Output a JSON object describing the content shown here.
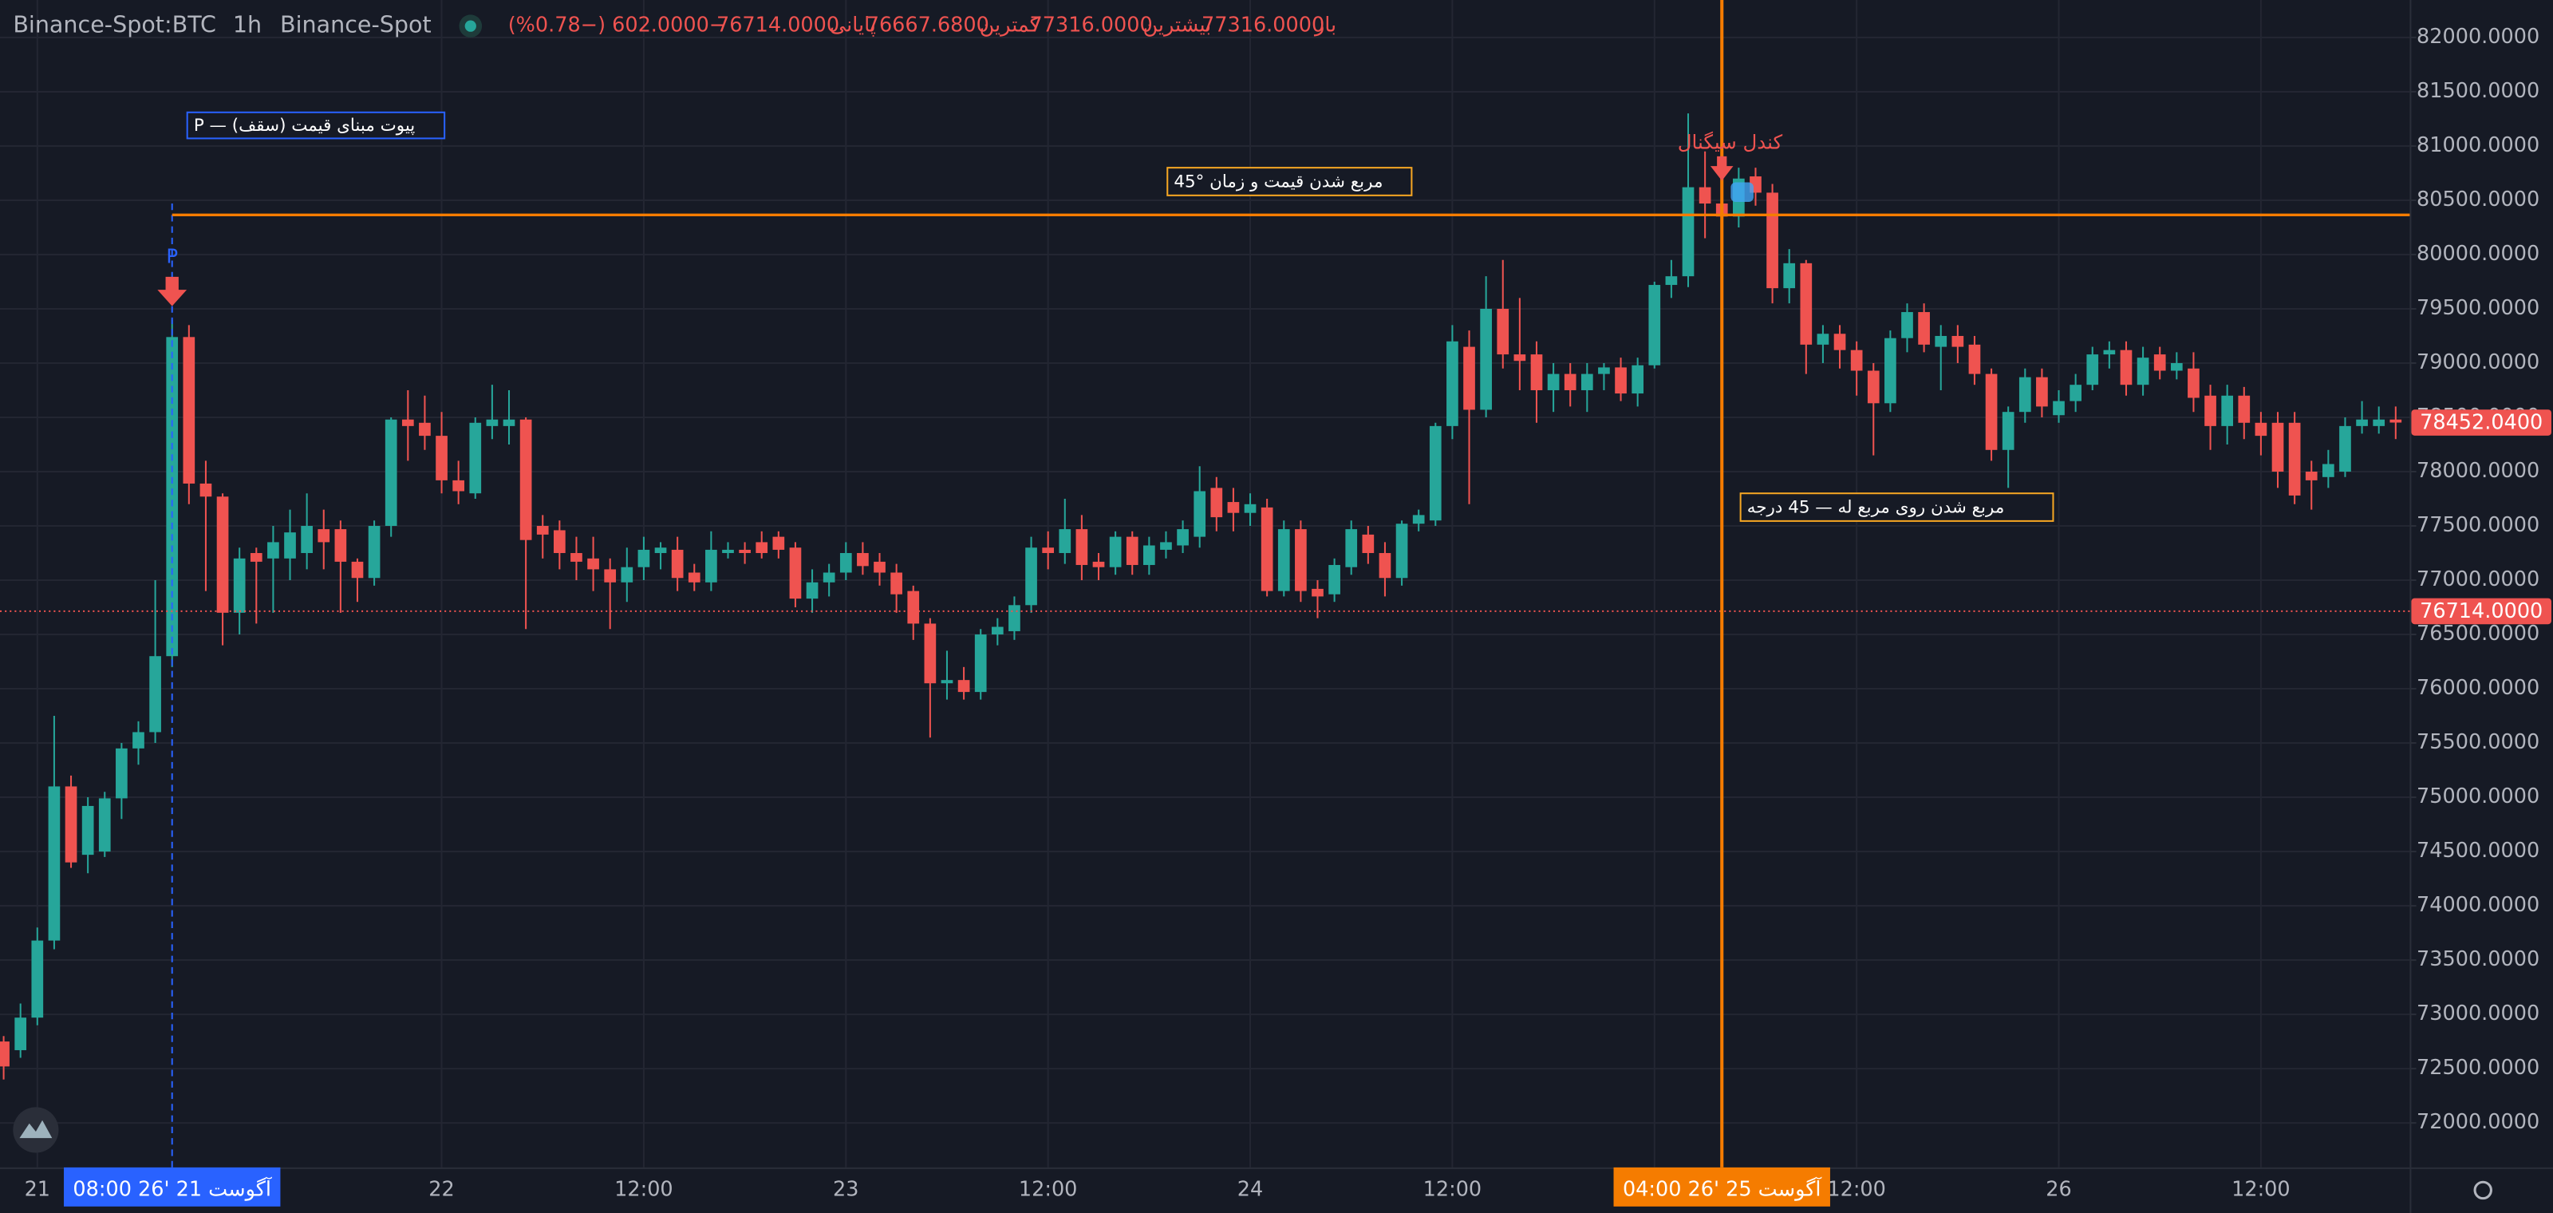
{
  "header": {
    "symbol": "Binance-Spot:BTC",
    "interval": "1h",
    "exchange": "Binance-Spot",
    "quote": [
      "باز",
      "77316.0000",
      "بیشترین",
      "77316.0000",
      "کمترین",
      "76667.6800",
      "پایانی",
      "76714.0000",
      "−602.0000 (−0.78%)"
    ]
  },
  "chart_data": {
    "type": "candlestick",
    "x": [
      "2026-08-20 22:00",
      "2026-08-20 23:00",
      "2026-08-21 00:00",
      "2026-08-21 01:00",
      "2026-08-21 02:00",
      "2026-08-21 03:00",
      "2026-08-21 04:00",
      "2026-08-21 05:00",
      "2026-08-21 06:00",
      "2026-08-21 07:00",
      "2026-08-21 08:00",
      "2026-08-21 09:00",
      "2026-08-21 10:00",
      "2026-08-21 11:00",
      "2026-08-21 12:00",
      "2026-08-21 13:00",
      "2026-08-21 14:00",
      "2026-08-21 15:00",
      "2026-08-21 16:00",
      "2026-08-21 17:00",
      "2026-08-21 18:00",
      "2026-08-21 19:00",
      "2026-08-21 20:00",
      "2026-08-21 21:00",
      "2026-08-21 22:00",
      "2026-08-21 23:00",
      "2026-08-22 00:00",
      "2026-08-22 01:00",
      "2026-08-22 02:00",
      "2026-08-22 03:00",
      "2026-08-22 04:00",
      "2026-08-22 05:00",
      "2026-08-22 06:00",
      "2026-08-22 07:00",
      "2026-08-22 08:00",
      "2026-08-22 09:00",
      "2026-08-22 10:00",
      "2026-08-22 11:00",
      "2026-08-22 12:00",
      "2026-08-22 13:00",
      "2026-08-22 14:00",
      "2026-08-22 15:00",
      "2026-08-22 16:00",
      "2026-08-22 17:00",
      "2026-08-22 18:00",
      "2026-08-22 19:00",
      "2026-08-22 20:00",
      "2026-08-22 21:00",
      "2026-08-22 22:00",
      "2026-08-22 23:00",
      "2026-08-23 00:00",
      "2026-08-23 01:00",
      "2026-08-23 02:00",
      "2026-08-23 03:00",
      "2026-08-23 04:00",
      "2026-08-23 05:00",
      "2026-08-23 06:00",
      "2026-08-23 07:00",
      "2026-08-23 08:00",
      "2026-08-23 09:00",
      "2026-08-23 10:00",
      "2026-08-23 11:00",
      "2026-08-23 12:00",
      "2026-08-23 13:00",
      "2026-08-23 14:00",
      "2026-08-23 15:00",
      "2026-08-23 16:00",
      "2026-08-23 17:00",
      "2026-08-23 18:00",
      "2026-08-23 19:00",
      "2026-08-23 20:00",
      "2026-08-23 21:00",
      "2026-08-23 22:00",
      "2026-08-23 23:00",
      "2026-08-24 00:00",
      "2026-08-24 01:00",
      "2026-08-24 02:00",
      "2026-08-24 03:00",
      "2026-08-24 04:00",
      "2026-08-24 05:00",
      "2026-08-24 06:00",
      "2026-08-24 07:00",
      "2026-08-24 08:00",
      "2026-08-24 09:00",
      "2026-08-24 10:00",
      "2026-08-24 11:00",
      "2026-08-24 12:00",
      "2026-08-24 13:00",
      "2026-08-24 14:00",
      "2026-08-24 15:00",
      "2026-08-24 16:00",
      "2026-08-24 17:00",
      "2026-08-24 18:00",
      "2026-08-24 19:00",
      "2026-08-24 20:00",
      "2026-08-24 21:00",
      "2026-08-24 22:00",
      "2026-08-24 23:00",
      "2026-08-25 00:00",
      "2026-08-25 01:00",
      "2026-08-25 02:00",
      "2026-08-25 03:00",
      "2026-08-25 04:00",
      "2026-08-25 05:00",
      "2026-08-25 06:00",
      "2026-08-25 07:00",
      "2026-08-25 08:00",
      "2026-08-25 09:00",
      "2026-08-25 10:00",
      "2026-08-25 11:00",
      "2026-08-25 12:00",
      "2026-08-25 13:00",
      "2026-08-25 14:00",
      "2026-08-25 15:00",
      "2026-08-25 16:00",
      "2026-08-25 17:00",
      "2026-08-25 18:00",
      "2026-08-25 19:00",
      "2026-08-25 20:00",
      "2026-08-25 21:00",
      "2026-08-25 22:00",
      "2026-08-25 23:00",
      "2026-08-26 00:00",
      "2026-08-26 01:00",
      "2026-08-26 02:00",
      "2026-08-26 03:00",
      "2026-08-26 04:00",
      "2026-08-26 05:00",
      "2026-08-26 06:00",
      "2026-08-26 07:00",
      "2026-08-26 08:00",
      "2026-08-26 09:00",
      "2026-08-26 10:00",
      "2026-08-26 11:00",
      "2026-08-26 12:00",
      "2026-08-26 13:00",
      "2026-08-26 14:00",
      "2026-08-26 15:00",
      "2026-08-26 16:00",
      "2026-08-26 17:00",
      "2026-08-26 18:00",
      "2026-08-26 19:00",
      "2026-08-26 20:00"
    ],
    "open": [
      72750,
      72670,
      72970,
      73680,
      75100,
      74470,
      74500,
      74990,
      75450,
      75600,
      76300,
      79240,
      77890,
      77770,
      76700,
      77250,
      77200,
      77200,
      77250,
      77470,
      77470,
      77170,
      77020,
      77500,
      78480,
      78450,
      78330,
      77920,
      77800,
      78420,
      78420,
      78480,
      77500,
      77460,
      77250,
      77200,
      77100,
      76980,
      77120,
      77250,
      77280,
      77070,
      76980,
      77250,
      77280,
      77350,
      77400,
      77300,
      76830,
      76980,
      77070,
      77250,
      77170,
      77070,
      76900,
      76600,
      76050,
      76080,
      75970,
      76500,
      76530,
      76770,
      77300,
      77250,
      77470,
      77170,
      77120,
      77400,
      77140,
      77280,
      77320,
      77400,
      77850,
      77720,
      77620,
      77670,
      76900,
      77470,
      76920,
      76870,
      77120,
      77420,
      77250,
      77020,
      77520,
      77550,
      78420,
      79150,
      78570,
      79500,
      79080,
      79080,
      78750,
      78900,
      78750,
      78900,
      78960,
      78720,
      78980,
      79720,
      79800,
      80620,
      80470,
      80350,
      80720,
      80570,
      79690,
      79920,
      79170,
      79270,
      79120,
      78930,
      78630,
      79230,
      79470,
      79150,
      79250,
      79170,
      78900,
      78200,
      78550,
      78870,
      78520,
      78650,
      78800,
      79080,
      79120,
      78800,
      79080,
      78930,
      78950,
      78700,
      78420,
      78700,
      78450,
      78450,
      78450,
      78000,
      77950,
      78000,
      78420,
      78420,
      78480
    ],
    "high": [
      72800,
      73100,
      73800,
      75750,
      75200,
      75000,
      75050,
      75500,
      75700,
      77000,
      79400,
      79350,
      78100,
      77800,
      77300,
      77300,
      77500,
      77650,
      77800,
      77650,
      77550,
      77200,
      77550,
      78500,
      78750,
      78700,
      78550,
      78100,
      78500,
      78800,
      78750,
      78500,
      77600,
      77550,
      77400,
      77400,
      77200,
      77300,
      77400,
      77350,
      77400,
      77150,
      77450,
      77350,
      77350,
      77450,
      77450,
      77350,
      77100,
      77150,
      77350,
      77350,
      77250,
      77150,
      76950,
      76650,
      76350,
      76200,
      76550,
      76650,
      76850,
      77400,
      77450,
      77750,
      77600,
      77250,
      77450,
      77450,
      77400,
      77450,
      77550,
      78050,
      77950,
      77850,
      77800,
      77750,
      77550,
      77550,
      77000,
      77200,
      77550,
      77500,
      77350,
      77550,
      77650,
      78450,
      79350,
      79300,
      79800,
      79950,
      79600,
      79200,
      79000,
      79000,
      79000,
      79000,
      79050,
      79050,
      79750,
      79950,
      81300,
      80950,
      80700,
      80800,
      80800,
      80650,
      80050,
      79950,
      79350,
      79350,
      79200,
      79000,
      79300,
      79550,
      79550,
      79350,
      79350,
      79250,
      78950,
      78600,
      78950,
      78950,
      78750,
      78900,
      79150,
      79200,
      79200,
      79150,
      79150,
      79100,
      79100,
      78800,
      78800,
      78780,
      78550,
      78550,
      78550,
      78100,
      78200,
      78500,
      78650,
      78600,
      78600
    ],
    "low": [
      72400,
      72600,
      72900,
      73600,
      74350,
      74300,
      74450,
      74800,
      75300,
      75500,
      76200,
      77700,
      76900,
      76400,
      76500,
      76600,
      76700,
      77000,
      77100,
      77100,
      76700,
      76800,
      76950,
      77400,
      78100,
      78200,
      77800,
      77700,
      77750,
      78300,
      78250,
      76550,
      77200,
      77100,
      77000,
      76900,
      76550,
      76800,
      77000,
      77100,
      76900,
      76900,
      76900,
      77200,
      77150,
      77200,
      77200,
      76750,
      76700,
      76850,
      77000,
      77050,
      76950,
      76700,
      76450,
      75550,
      75900,
      75900,
      75900,
      76400,
      76450,
      76700,
      77100,
      77150,
      77000,
      77000,
      77050,
      77050,
      77050,
      77200,
      77250,
      77300,
      77450,
      77450,
      77500,
      76850,
      76850,
      76800,
      76650,
      76800,
      77050,
      77150,
      76850,
      76950,
      77450,
      77500,
      78300,
      77700,
      78500,
      78950,
      78750,
      78450,
      78550,
      78600,
      78550,
      78750,
      78650,
      78600,
      78950,
      79600,
      79700,
      80150,
      80200,
      80250,
      80450,
      79550,
      79550,
      78900,
      79000,
      78950,
      78700,
      78150,
      78550,
      79100,
      79100,
      78750,
      79000,
      78800,
      78100,
      77850,
      78450,
      78500,
      78450,
      78550,
      78750,
      78950,
      78700,
      78700,
      78850,
      78850,
      78550,
      78200,
      78250,
      78300,
      78150,
      77850,
      77700,
      77650,
      77850,
      77950,
      78350,
      78350,
      78300
    ],
    "close": [
      72520,
      72970,
      73680,
      75100,
      74400,
      74920,
      74990,
      75450,
      75600,
      76300,
      79240,
      77890,
      77770,
      76700,
      77200,
      77170,
      77350,
      77440,
      77500,
      77350,
      77170,
      77020,
      77500,
      78480,
      78420,
      78330,
      77920,
      77820,
      78450,
      78480,
      78480,
      77370,
      77420,
      77250,
      77170,
      77100,
      76980,
      77120,
      77280,
      77300,
      77020,
      76980,
      77280,
      77280,
      77250,
      77250,
      77280,
      76830,
      76980,
      77070,
      77250,
      77130,
      77070,
      76870,
      76600,
      76050,
      76080,
      75970,
      76500,
      76570,
      76770,
      77300,
      77250,
      77470,
      77140,
      77120,
      77400,
      77140,
      77320,
      77350,
      77470,
      77820,
      77580,
      77620,
      77700,
      76900,
      77470,
      76900,
      76850,
      77140,
      77470,
      77250,
      77020,
      77520,
      77600,
      78420,
      79200,
      78570,
      79500,
      79080,
      79020,
      78750,
      78900,
      78750,
      78900,
      78960,
      78720,
      78980,
      79720,
      79800,
      80620,
      80470,
      80350,
      80700,
      80570,
      79690,
      79920,
      79170,
      79270,
      79120,
      78930,
      78630,
      79230,
      79470,
      79170,
      79250,
      79150,
      78900,
      78200,
      78550,
      78870,
      78600,
      78650,
      78800,
      79080,
      79120,
      78800,
      79050,
      78930,
      79000,
      78680,
      78420,
      78700,
      78450,
      78330,
      78000,
      77780,
      77920,
      78070,
      78420,
      78480,
      78480,
      78452.04
    ],
    "up_color": "#26a69a",
    "down_color": "#ef5350",
    "xlim": [
      "2026-08-20 21:47",
      "2026-08-26 20:50"
    ],
    "xticks": [
      {
        "value": "2026-08-21 00:00",
        "label": "21"
      },
      {
        "value": "2026-08-22 00:00",
        "label": "22"
      },
      {
        "value": "2026-08-22 12:00",
        "label": "12:00"
      },
      {
        "value": "2026-08-23 00:00",
        "label": "23"
      },
      {
        "value": "2026-08-23 12:00",
        "label": "12:00"
      },
      {
        "value": "2026-08-24 00:00",
        "label": "24"
      },
      {
        "value": "2026-08-24 12:00",
        "label": "12:00"
      },
      {
        "value": "2026-08-25 00:00",
        "label": "25"
      },
      {
        "value": "2026-08-25 12:00",
        "label": "12:00"
      },
      {
        "value": "2026-08-26 00:00",
        "label": "26"
      },
      {
        "value": "2026-08-26 12:00",
        "label": "12:00"
      }
    ],
    "ylim": [
      71590,
      82345
    ],
    "yticks": [
      {
        "value": 72000,
        "label": "72000.0000"
      },
      {
        "value": 72500,
        "label": "72500.0000"
      },
      {
        "value": 73000,
        "label": "73000.0000"
      },
      {
        "value": 73500,
        "label": "73500.0000"
      },
      {
        "value": 74000,
        "label": "74000.0000"
      },
      {
        "value": 74500,
        "label": "74500.0000"
      },
      {
        "value": 75000,
        "label": "75000.0000"
      },
      {
        "value": 75500,
        "label": "75500.0000"
      },
      {
        "value": 76000,
        "label": "76000.0000"
      },
      {
        "value": 76500,
        "label": "76500.0000"
      },
      {
        "value": 77000,
        "label": "77000.0000"
      },
      {
        "value": 77500,
        "label": "77500.0000"
      },
      {
        "value": 78000,
        "label": "78000.0000"
      },
      {
        "value": 78500,
        "label": "78500.0000"
      },
      {
        "value": 79000,
        "label": "79000.0000"
      },
      {
        "value": 79500,
        "label": "79500.0000"
      },
      {
        "value": 80000,
        "label": "80000.0000"
      },
      {
        "value": 80500,
        "label": "80500.0000"
      },
      {
        "value": 81000,
        "label": "81000.0000"
      },
      {
        "value": 81500,
        "label": "81500.0000"
      },
      {
        "value": 82000,
        "label": "82000.0000"
      }
    ],
    "grid": true,
    "price_labels": [
      {
        "value": 78452.04,
        "label": "78452.0400",
        "color": "#ef5350"
      },
      {
        "value": 76714,
        "label": "76714.0000",
        "color": "#ef5350"
      }
    ],
    "crosshairs": [
      {
        "x": "2026-08-21 08:00",
        "label": "08:00   26' آگوست 21",
        "color": "#2962ff"
      },
      {
        "x": "2026-08-25 04:00",
        "label": "04:00   26' آگوست 25",
        "color": "#f57c00"
      }
    ],
    "level": 80365,
    "level_color": "#f57c00",
    "annotations": {
      "pivot_marker": "P",
      "pivot_label": "P — پیوت مبنای قیمت (سقف)",
      "square_label": "45° مربع شدن قیمت و زمان",
      "signal_label": "کندل سیگنال",
      "square45_label": "مربع شدن روی مربع له — 45 درجه"
    }
  }
}
